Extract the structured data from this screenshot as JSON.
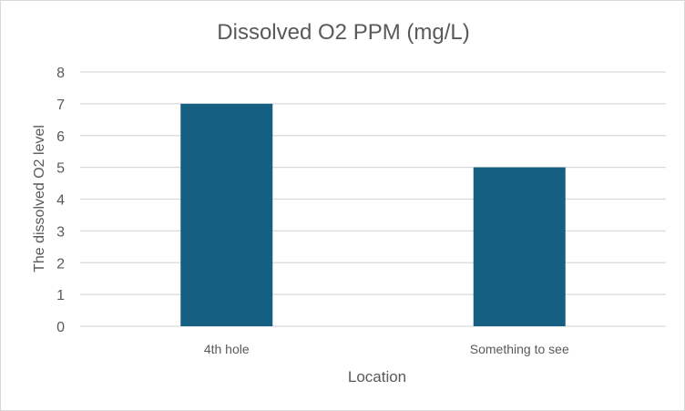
{
  "chart_data": {
    "type": "bar",
    "title": "Dissolved O2 PPM (mg/L)",
    "xlabel": "Location",
    "ylabel": "The dissolved O2 level",
    "categories": [
      "4th hole",
      "Something to see"
    ],
    "values": [
      7,
      5
    ],
    "ylim": [
      0,
      8
    ],
    "yticks": [
      0,
      1,
      2,
      3,
      4,
      5,
      6,
      7,
      8
    ],
    "grid": true,
    "legend": "none",
    "bar_color": "#156082"
  }
}
